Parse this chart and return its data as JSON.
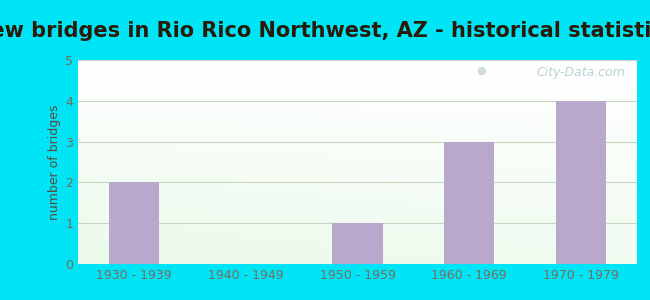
{
  "title": "New bridges in Rio Rico Northwest, AZ - historical statistics",
  "categories": [
    "1930 - 1939",
    "1940 - 1949",
    "1950 - 1959",
    "1960 - 1969",
    "1970 - 1979"
  ],
  "values": [
    2,
    0,
    1,
    3,
    4
  ],
  "bar_color": "#b8a8cc",
  "ylabel": "number of bridges",
  "ylim": [
    0,
    5
  ],
  "yticks": [
    0,
    1,
    2,
    3,
    4,
    5
  ],
  "background_outer": "#00e5f5",
  "title_color": "#2a1a0a",
  "title_fontsize": 15,
  "tick_label_color": "#7a6a5a",
  "ylabel_color": "#5a4a3a",
  "grid_color": "#c8d8c0",
  "watermark": "City-Data.com",
  "watermark_color": "#b0c8d0"
}
